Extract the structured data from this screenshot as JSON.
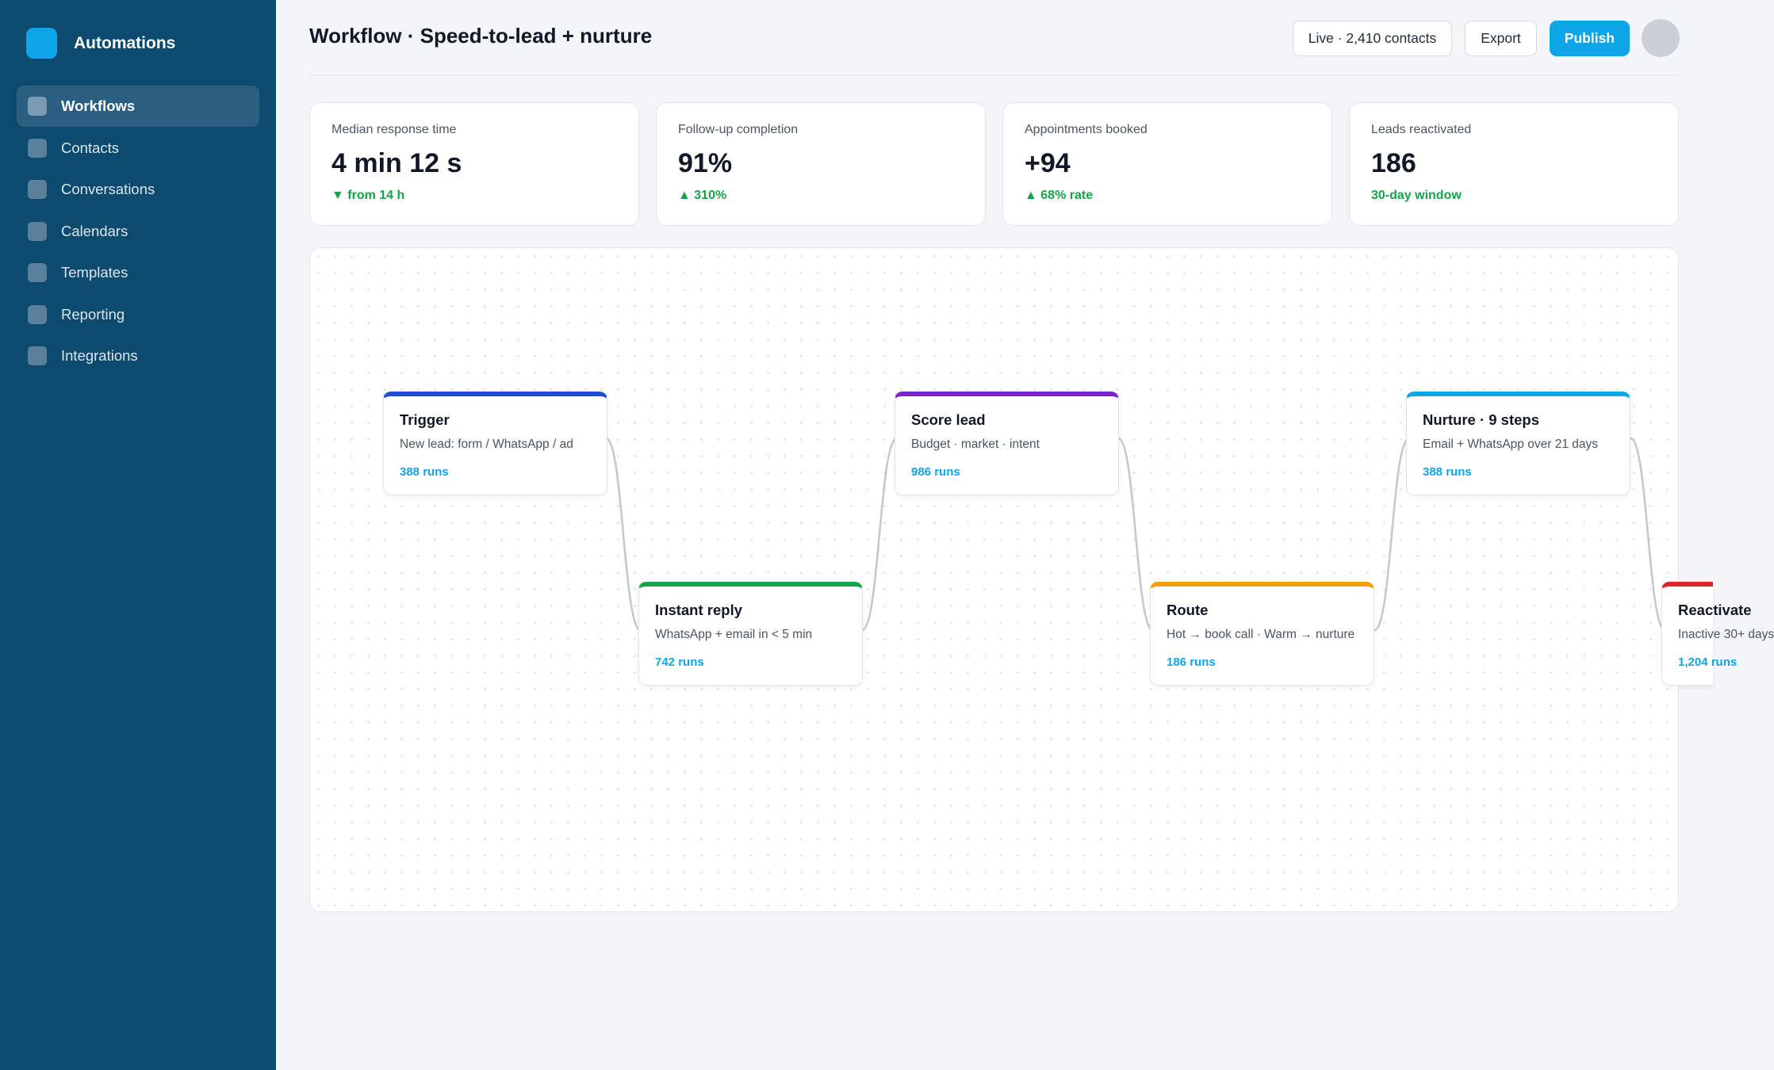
{
  "app": {
    "name": "Automations"
  },
  "sidebar": {
    "items": [
      {
        "label": "Workflows",
        "active": true
      },
      {
        "label": "Contacts"
      },
      {
        "label": "Conversations"
      },
      {
        "label": "Calendars"
      },
      {
        "label": "Templates"
      },
      {
        "label": "Reporting"
      },
      {
        "label": "Integrations"
      }
    ]
  },
  "header": {
    "title": "Workflow · Speed-to-lead + nurture",
    "live_label": "Live · 2,410 contacts",
    "export_label": "Export",
    "publish_label": "Publish"
  },
  "kpis": [
    {
      "label": "Median response time",
      "value": "4 min 12 s",
      "delta": "▼ from 14 h"
    },
    {
      "label": "Follow-up completion",
      "value": "91%",
      "delta": "▲ 310%"
    },
    {
      "label": "Appointments booked",
      "value": "+94",
      "delta": "▲ 68% rate"
    },
    {
      "label": "Leads reactivated",
      "value": "186",
      "delta": "30-day window"
    }
  ],
  "workflow": {
    "nodes": [
      {
        "title": "Trigger",
        "desc": "New lead: form / WhatsApp / ad",
        "runs": "388 runs",
        "color": "#1d4ed8"
      },
      {
        "title": "Instant reply",
        "desc": "WhatsApp + email in < 5 min",
        "runs": "742 runs",
        "color": "#16a34a"
      },
      {
        "title": "Score lead",
        "desc": "Budget · market · intent",
        "runs": "986 runs",
        "color": "#7e22ce"
      },
      {
        "title": "Route",
        "desc": "Hot → book call · Warm → nurture",
        "runs": "186 runs",
        "color": "#f59e0b"
      },
      {
        "title": "Nurture · 9 steps",
        "desc": "Email + WhatsApp over 21 days",
        "runs": "388 runs",
        "color": "#0ea5e9"
      },
      {
        "title": "Reactivate",
        "desc": "Inactive 30+ days",
        "runs": "1,204 runs",
        "color": "#dc2626"
      }
    ]
  }
}
